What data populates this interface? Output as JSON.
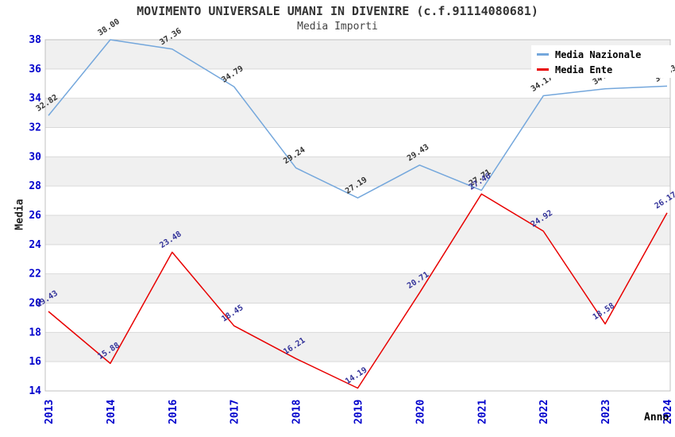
{
  "title": "MOVIMENTO UNIVERSALE UMANI IN DIVENIRE (c.f.91114080681)",
  "subtitle": "Media Importi",
  "chart_data": {
    "type": "line",
    "title": "MOVIMENTO UNIVERSALE UMANI IN DIVENIRE (c.f.91114080681)",
    "subtitle": "Media Importi",
    "xlabel": "Anno",
    "ylabel": "Media",
    "categories": [
      "2013",
      "2014",
      "2016",
      "2017",
      "2018",
      "2019",
      "2020",
      "2021",
      "2022",
      "2023",
      "2024"
    ],
    "series": [
      {
        "name": "Media Nazionale",
        "color": "#74a7dc",
        "label_color": "#333333",
        "values": [
          32.82,
          38.0,
          37.36,
          34.79,
          29.24,
          27.19,
          29.43,
          27.71,
          34.17,
          34.65,
          34.83
        ]
      },
      {
        "name": "Media Ente",
        "color": "#e80000",
        "label_color": "#333399",
        "values": [
          19.43,
          15.88,
          23.48,
          18.45,
          16.21,
          14.19,
          20.71,
          27.46,
          24.92,
          18.58,
          26.17
        ]
      }
    ],
    "ylim": [
      14,
      38
    ],
    "ytick_step": 2,
    "grid": true,
    "legend_position": "top-right",
    "style": {
      "band_color": "#f0f0f0",
      "grid_color": "#d9d9d9",
      "border_color": "#c0c0c0",
      "tick_color": "#0000cc"
    }
  }
}
